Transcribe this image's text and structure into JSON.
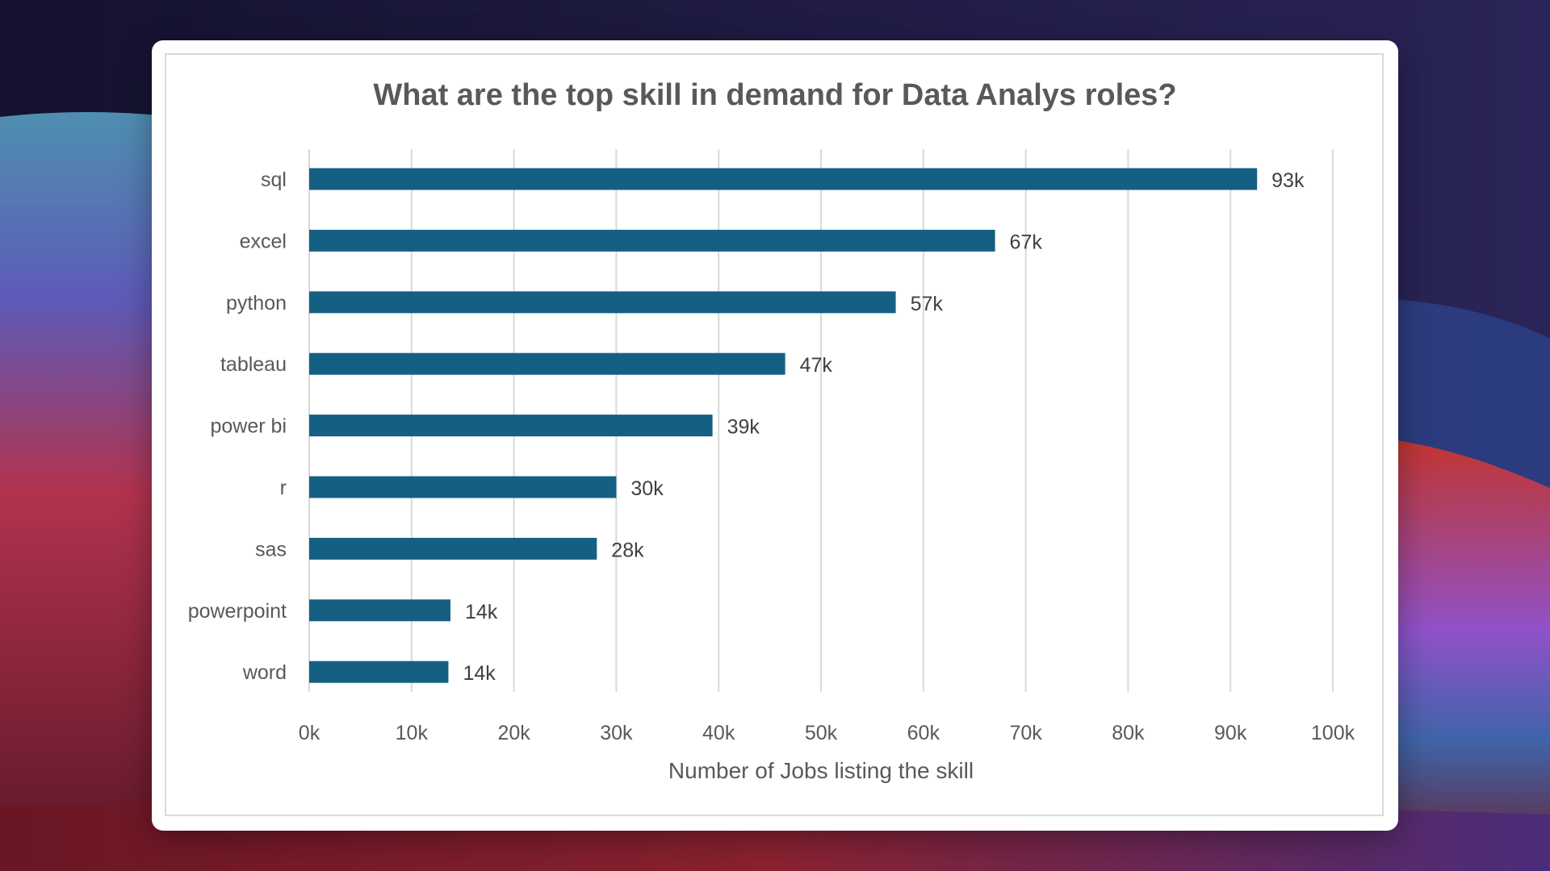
{
  "colors": {
    "bar": "#156082",
    "gridline": "#d9d9d9",
    "card_background": "#ffffff"
  },
  "chart_data": {
    "type": "bar",
    "orientation": "horizontal",
    "title": "What are the top skill in demand for Data Analys roles?",
    "xlabel": "Number of Jobs listing the skill",
    "ylabel": "",
    "categories": [
      "sql",
      "excel",
      "python",
      "tableau",
      "power bi",
      "r",
      "sas",
      "powerpoint",
      "word"
    ],
    "values": [
      92600,
      67000,
      57300,
      46500,
      39400,
      30000,
      28100,
      13800,
      13600
    ],
    "data_labels": [
      "93k",
      "67k",
      "57k",
      "47k",
      "39k",
      "30k",
      "28k",
      "14k",
      "14k"
    ],
    "xlim": [
      0,
      100000
    ],
    "x_ticks": [
      0,
      10000,
      20000,
      30000,
      40000,
      50000,
      60000,
      70000,
      80000,
      90000,
      100000
    ],
    "x_tick_labels": [
      "0k",
      "10k",
      "20k",
      "30k",
      "40k",
      "50k",
      "60k",
      "70k",
      "80k",
      "90k",
      "100k"
    ],
    "grid": "vertical",
    "legend": "none"
  }
}
